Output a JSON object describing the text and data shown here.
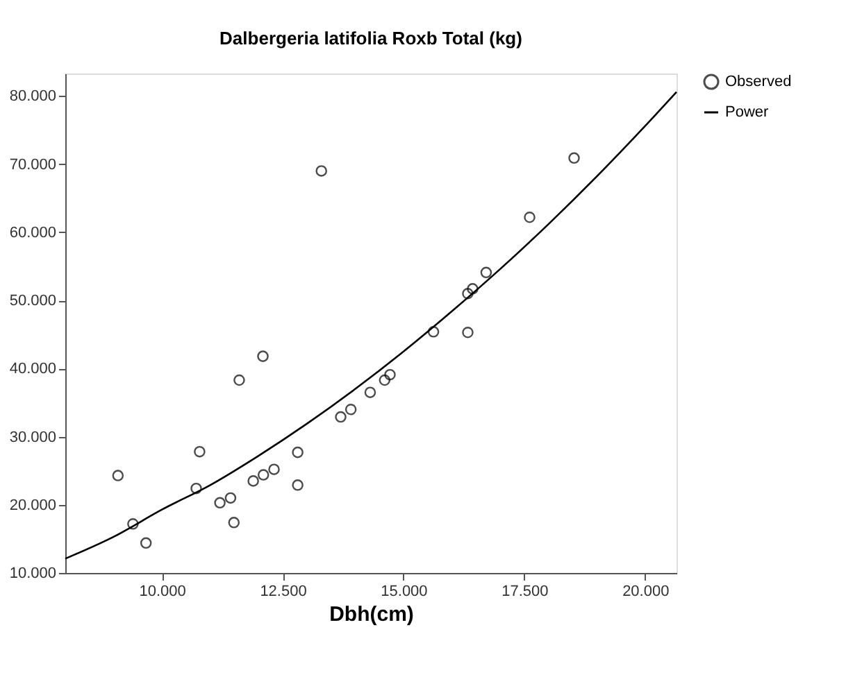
{
  "chart_data": {
    "type": "scatter",
    "title": "Dalbergeria latifolia Roxb   Total (kg)",
    "xlabel": "Dbh(cm)",
    "xlim": [
      8,
      20.65
    ],
    "ylim": [
      10,
      83.3
    ],
    "xticks": [
      {
        "value": 10,
        "label": "10.000"
      },
      {
        "value": 12.5,
        "label": "12.500"
      },
      {
        "value": 15,
        "label": "15.000"
      },
      {
        "value": 17.5,
        "label": "17.500"
      },
      {
        "value": 20,
        "label": "20.000"
      }
    ],
    "yticks": [
      {
        "value": 10,
        "label": "10.000"
      },
      {
        "value": 20,
        "label": "20.000"
      },
      {
        "value": 30,
        "label": "30.000"
      },
      {
        "value": 40,
        "label": "40.000"
      },
      {
        "value": 50,
        "label": "50.000"
      },
      {
        "value": 60,
        "label": "60.000"
      },
      {
        "value": 70,
        "label": "70.000"
      },
      {
        "value": 80,
        "label": "80.000"
      }
    ],
    "grid": false,
    "legend": "top right",
    "series": [
      {
        "name": "Observed",
        "type": "scatter",
        "marker": "circle",
        "color": "#000000",
        "x": [
          9.09,
          9.4,
          9.67,
          10.71,
          10.78,
          11.2,
          11.42,
          11.49,
          11.6,
          11.89,
          12.09,
          12.1,
          12.32,
          12.81,
          12.81,
          13.3,
          13.7,
          13.91,
          14.31,
          14.61,
          14.72,
          15.62,
          16.33,
          16.33,
          16.43,
          16.71,
          17.61,
          18.53
        ],
        "values": [
          24.3,
          17.2,
          14.4,
          22.4,
          27.8,
          20.3,
          21.0,
          17.4,
          38.3,
          23.5,
          41.8,
          24.4,
          25.2,
          27.7,
          22.9,
          69.0,
          32.9,
          34.0,
          36.5,
          38.3,
          39.1,
          45.4,
          51.0,
          45.3,
          51.7,
          54.1,
          62.2,
          70.9
        ]
      },
      {
        "name": "Power",
        "type": "line",
        "line_style": "solid",
        "color": "#000000",
        "x": [
          8,
          9,
          10,
          11,
          12,
          13,
          14,
          15,
          16,
          17,
          18,
          19,
          20,
          20.65
        ],
        "values": [
          12.1,
          15.3,
          19.3,
          22.9,
          27.2,
          31.9,
          37.0,
          42.5,
          48.4,
          54.6,
          61.2,
          68.2,
          75.6,
          80.6
        ]
      }
    ]
  }
}
